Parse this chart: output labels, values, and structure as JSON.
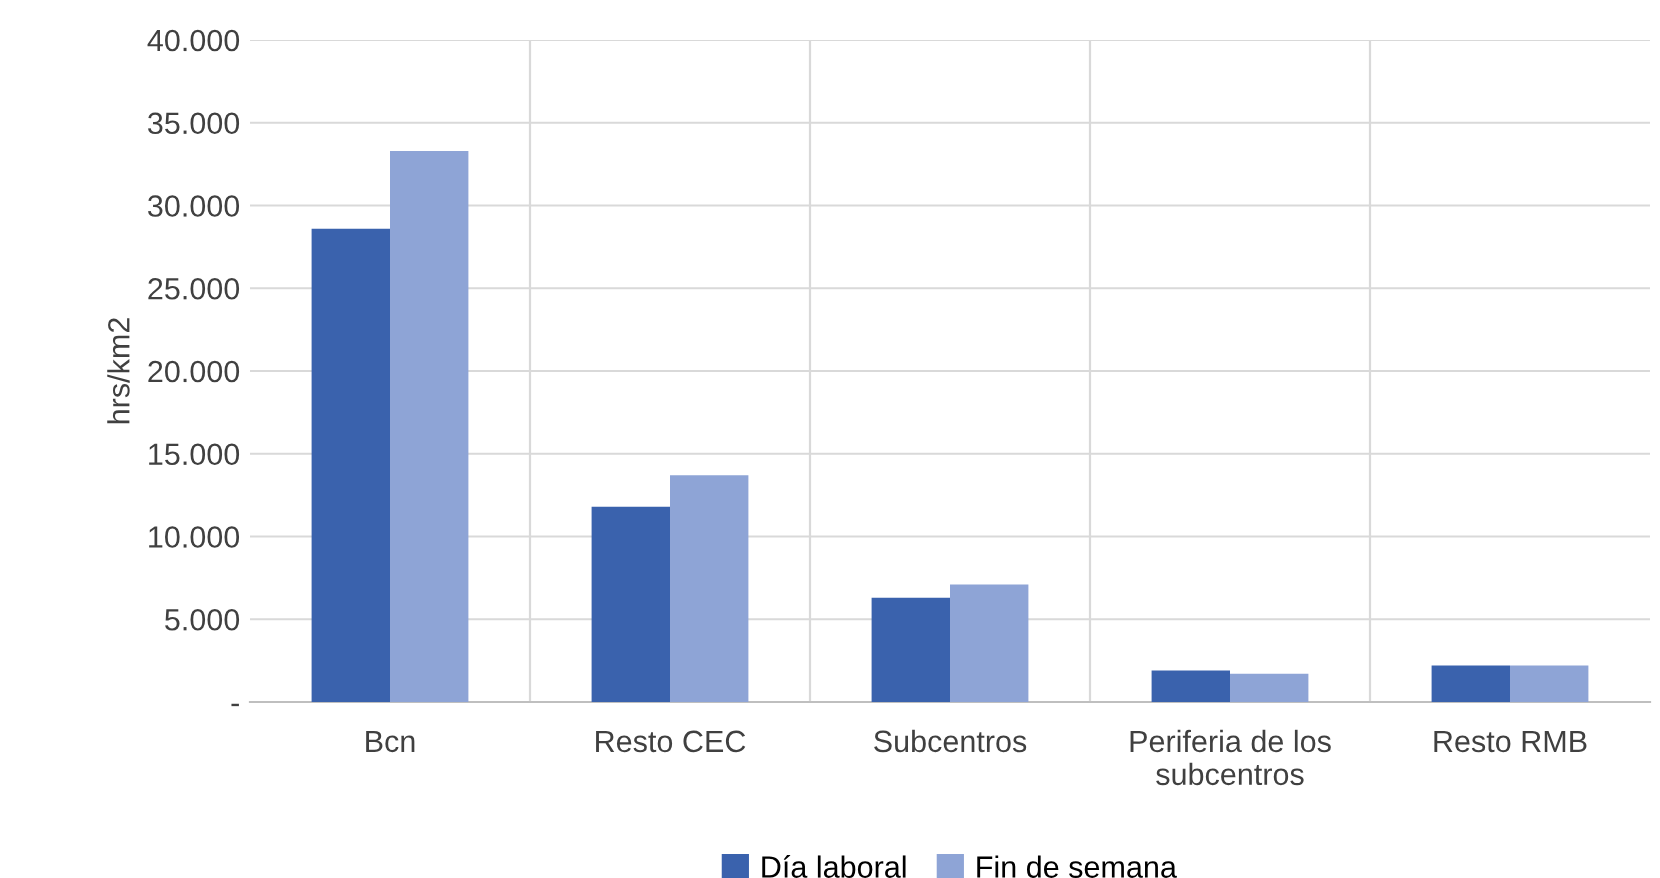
{
  "chart_data": {
    "type": "bar",
    "ylabel": "hrs/km2",
    "categories": [
      "Bcn",
      "Resto CEC",
      "Subcentros",
      "Periferia de los\nsubcentros",
      "Resto RMB"
    ],
    "series": [
      {
        "name": "Día laboral",
        "color": "#3a62ad",
        "values": [
          28600,
          11800,
          6300,
          1900,
          2200
        ]
      },
      {
        "name": "Fin de semana",
        "color": "#8ea4d6",
        "values": [
          33300,
          13700,
          7100,
          1700,
          2200
        ]
      }
    ],
    "ylim": [
      0,
      40000
    ],
    "yticks": [
      {
        "value": 0,
        "label": "-"
      },
      {
        "value": 5000,
        "label": "5.000"
      },
      {
        "value": 10000,
        "label": "10.000"
      },
      {
        "value": 15000,
        "label": "15.000"
      },
      {
        "value": 20000,
        "label": "20.000"
      },
      {
        "value": 25000,
        "label": "25.000"
      },
      {
        "value": 30000,
        "label": "30.000"
      },
      {
        "value": 35000,
        "label": "35.000"
      },
      {
        "value": 40000,
        "label": "40.000"
      }
    ],
    "grid": true,
    "legend": "bottom"
  }
}
